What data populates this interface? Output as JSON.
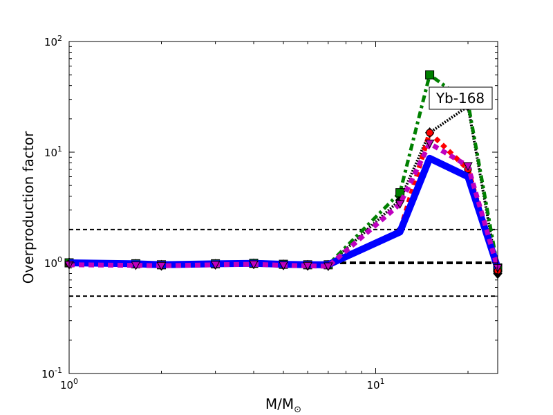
{
  "chart_data": {
    "type": "line",
    "xscale": "log",
    "yscale": "log",
    "xlim": [
      1,
      25
    ],
    "ylim": [
      0.1,
      100
    ],
    "xlabel": "M/M",
    "xlabel_sub": "⊙",
    "ylabel": "Overproduction factor",
    "x_ticks": [
      {
        "base": "10",
        "exp": "0",
        "value": 1
      },
      {
        "base": "10",
        "exp": "1",
        "value": 10
      }
    ],
    "y_ticks": [
      {
        "base": "10",
        "exp": "-1",
        "value": 0.1
      },
      {
        "base": "10",
        "exp": "0",
        "value": 1
      },
      {
        "base": "10",
        "exp": "1",
        "value": 10
      },
      {
        "base": "10",
        "exp": "2",
        "value": 100
      }
    ],
    "annotation": "Yb-168",
    "reference_lines": [
      {
        "y": 2.0,
        "style": "dashed"
      },
      {
        "y": 1.0,
        "style": "dashed-bold"
      },
      {
        "y": 0.5,
        "style": "dashed"
      }
    ],
    "series": [
      {
        "color": "#000000",
        "dash": "2,2",
        "width": 4,
        "marker": "diamond",
        "x": [
          1,
          1.65,
          2,
          3,
          4,
          5,
          6,
          7,
          12,
          15,
          20,
          25
        ],
        "y": [
          1.0,
          0.97,
          0.95,
          0.97,
          0.98,
          0.96,
          0.95,
          0.95,
          3.7,
          15,
          26,
          0.8
        ]
      },
      {
        "color": "#008000",
        "dash": "4,5,10,5",
        "width": 5,
        "marker": "square",
        "x": [
          1,
          1.65,
          2,
          3,
          4,
          5,
          6,
          7,
          12,
          15,
          20,
          25
        ],
        "y": [
          1.0,
          0.98,
          0.96,
          0.98,
          0.99,
          0.97,
          0.96,
          0.96,
          4.3,
          50,
          28,
          0.9
        ]
      },
      {
        "color": "#ff0000",
        "dash": "7,6",
        "width": 7,
        "marker": "circle",
        "x": [
          1,
          1.65,
          2,
          3,
          4,
          5,
          6,
          7,
          12,
          15,
          20,
          25
        ],
        "y": [
          0.98,
          0.97,
          0.95,
          0.97,
          0.98,
          0.96,
          0.95,
          0.95,
          1.95,
          15,
          7,
          0.85
        ]
      },
      {
        "color": "#0000ff",
        "dash": "",
        "width": 10,
        "marker": "none",
        "x": [
          1,
          1.65,
          2,
          3,
          4,
          5,
          6,
          7,
          12,
          15,
          20,
          25
        ],
        "y": [
          1.0,
          0.98,
          0.96,
          0.98,
          0.99,
          0.97,
          0.96,
          0.96,
          1.9,
          8.8,
          6,
          0.9
        ]
      },
      {
        "color": "#bf00bf",
        "dash": "8,6",
        "width": 7,
        "marker": "triangle-down",
        "x": [
          1,
          1.65,
          2,
          3,
          4,
          5,
          6,
          7,
          12,
          15,
          20,
          25
        ],
        "y": [
          0.96,
          0.95,
          0.94,
          0.96,
          0.97,
          0.95,
          0.94,
          0.93,
          3.4,
          12,
          7.5,
          0.9
        ]
      }
    ]
  }
}
